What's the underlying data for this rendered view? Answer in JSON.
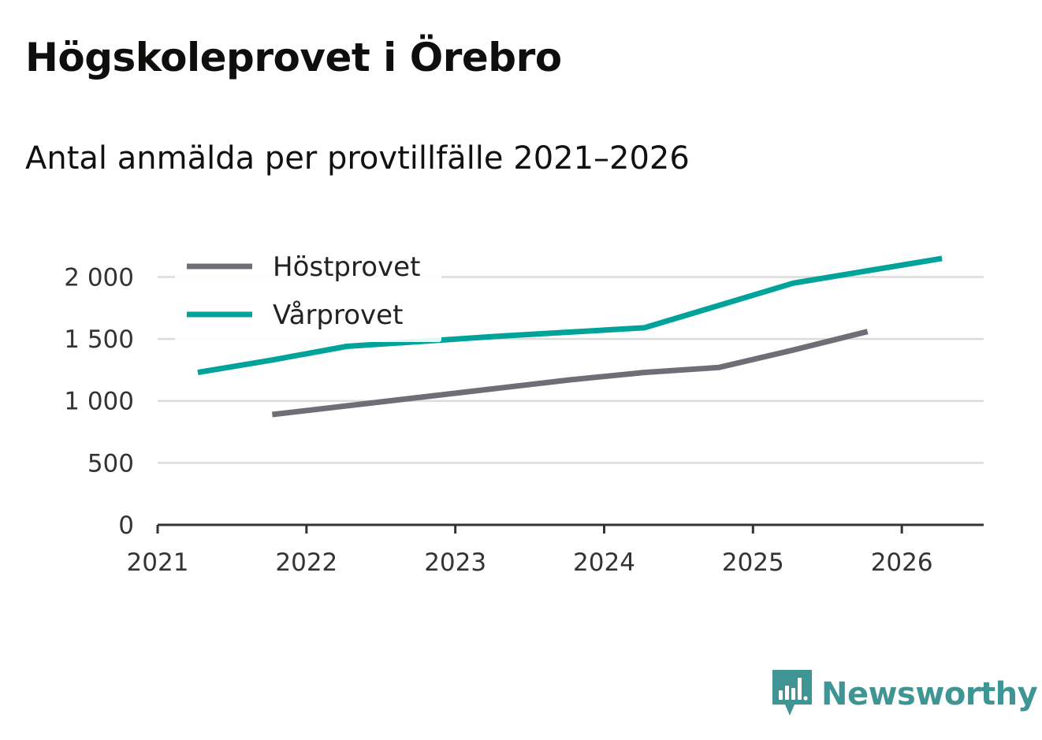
{
  "title": "Högskoleprovet i Örebro",
  "subtitle": "Antal anmälda per provtillfälle 2021–2026",
  "brand": "Newsworthy",
  "colors": {
    "hostprovet": "#6e6e76",
    "varprovet": "#00a39a",
    "grid": "#dcdcdc",
    "axis": "#333333",
    "brand": "#3f9593"
  },
  "chart_data": {
    "type": "line",
    "title": "Högskoleprovet i Örebro",
    "subtitle": "Antal anmälda per provtillfälle 2021–2026",
    "xlim": [
      2021,
      2026.55
    ],
    "ylim": [
      0,
      2200
    ],
    "x_ticks": [
      "2021",
      "2022",
      "2023",
      "2024",
      "2025",
      "2026"
    ],
    "y_ticks": [
      0,
      500,
      1000,
      1500,
      2000
    ],
    "y_tick_labels": [
      "0",
      "500",
      "1 000",
      "1 500",
      "2 000"
    ],
    "grid": true,
    "legend": "top-left",
    "series": [
      {
        "name": "Höstprovet",
        "color": "#6e6e76",
        "x": [
          2021.77,
          2022.27,
          2022.77,
          2023.27,
          2023.77,
          2024.27,
          2024.77,
          2025.27,
          2025.77
        ],
        "y": [
          890,
          960,
          1030,
          1100,
          1170,
          1230,
          1270,
          1410,
          1560
        ]
      },
      {
        "name": "Vårprovet",
        "color": "#00a39a",
        "x": [
          2021.27,
          2021.77,
          2022.27,
          2022.77,
          2023.27,
          2023.77,
          2024.27,
          2024.77,
          2025.27,
          2025.77,
          2026.27
        ],
        "y": [
          1230,
          1330,
          1440,
          1480,
          1520,
          1555,
          1590,
          1770,
          1950,
          2050,
          2150
        ]
      }
    ]
  }
}
